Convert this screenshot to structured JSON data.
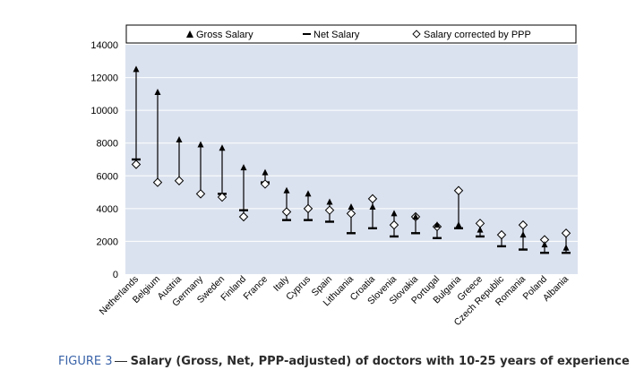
{
  "caption": {
    "figure_label": "FIGURE 3",
    "title": "Salary (Gross, Net, PPP-adjusted) of doctors with 10-25 years of experience"
  },
  "colors": {
    "plot_background": "#dbe2ef",
    "marker": "#000000",
    "caption_label": "#3a63a8",
    "gridline": "#ffffff"
  },
  "chart_data": {
    "type": "scatter",
    "title": "",
    "xlabel": "",
    "ylabel": "",
    "ylim": [
      0,
      14000
    ],
    "yticks": [
      0,
      2000,
      4000,
      6000,
      8000,
      10000,
      12000,
      14000
    ],
    "grid": true,
    "legend_position": "top",
    "categories": [
      "Netherlands",
      "Belgium",
      "Austria",
      "Germany",
      "Sweden",
      "Finland",
      "France",
      "Italy",
      "Cyprus",
      "Spain",
      "Lithuania",
      "Croatia",
      "Slovenia",
      "Slovakia",
      "Portugal",
      "Bulgaria",
      "Greece",
      "Czech Republic",
      "Romania",
      "Poland",
      "Albania"
    ],
    "series": [
      {
        "name": "Gross Salary",
        "marker": "triangle",
        "values": [
          12500,
          11100,
          8200,
          7900,
          7700,
          6500,
          6200,
          5100,
          4900,
          4400,
          4100,
          4100,
          3700,
          3500,
          3000,
          3000,
          2700,
          null,
          2400,
          1800,
          1600
        ]
      },
      {
        "name": "Net Salary",
        "marker": "dash",
        "values": [
          7000,
          null,
          null,
          null,
          4900,
          3900,
          5600,
          3300,
          3300,
          3200,
          2500,
          2800,
          2300,
          2500,
          2200,
          2800,
          2300,
          1700,
          1500,
          1300,
          1300
        ]
      },
      {
        "name": "Salary corrected by PPP",
        "marker": "diamond",
        "values": [
          6700,
          5600,
          5700,
          4900,
          4700,
          3500,
          5500,
          3800,
          4000,
          3900,
          3700,
          4600,
          3000,
          3500,
          2900,
          5100,
          3100,
          2400,
          3000,
          2100,
          2500
        ]
      }
    ]
  }
}
